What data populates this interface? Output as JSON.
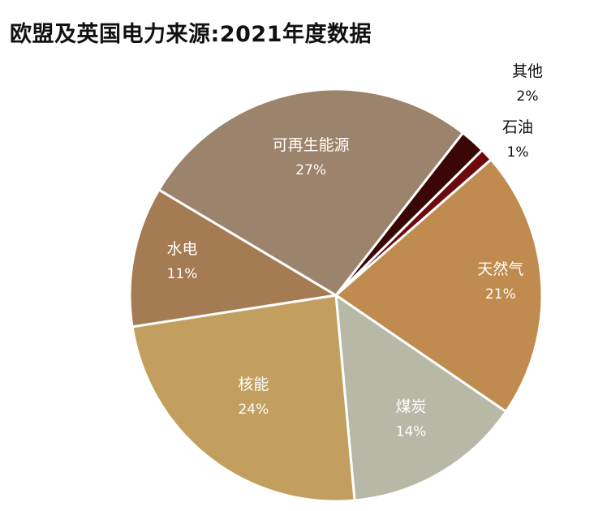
{
  "chart_data": {
    "type": "pie",
    "title": "欧盟及英国电力来源:2021年度数据",
    "slices": [
      {
        "name": "其他",
        "value": 2,
        "label": "2%",
        "color": "#3a0606"
      },
      {
        "name": "石油",
        "value": 1,
        "label": "1%",
        "color": "#6e0a0e"
      },
      {
        "name": "天然气",
        "value": 21,
        "label": "21%",
        "color": "#bf8b4e"
      },
      {
        "name": "煤炭",
        "value": 14,
        "label": "14%",
        "color": "#b8b8a6"
      },
      {
        "name": "核能",
        "value": 24,
        "label": "24%",
        "color": "#c29f5e"
      },
      {
        "name": "水电",
        "value": 11,
        "label": "11%",
        "color": "#a57b54"
      },
      {
        "name": "可再生能源",
        "value": 27,
        "label": "27%",
        "color": "#9c836b"
      }
    ],
    "legend": "none"
  }
}
